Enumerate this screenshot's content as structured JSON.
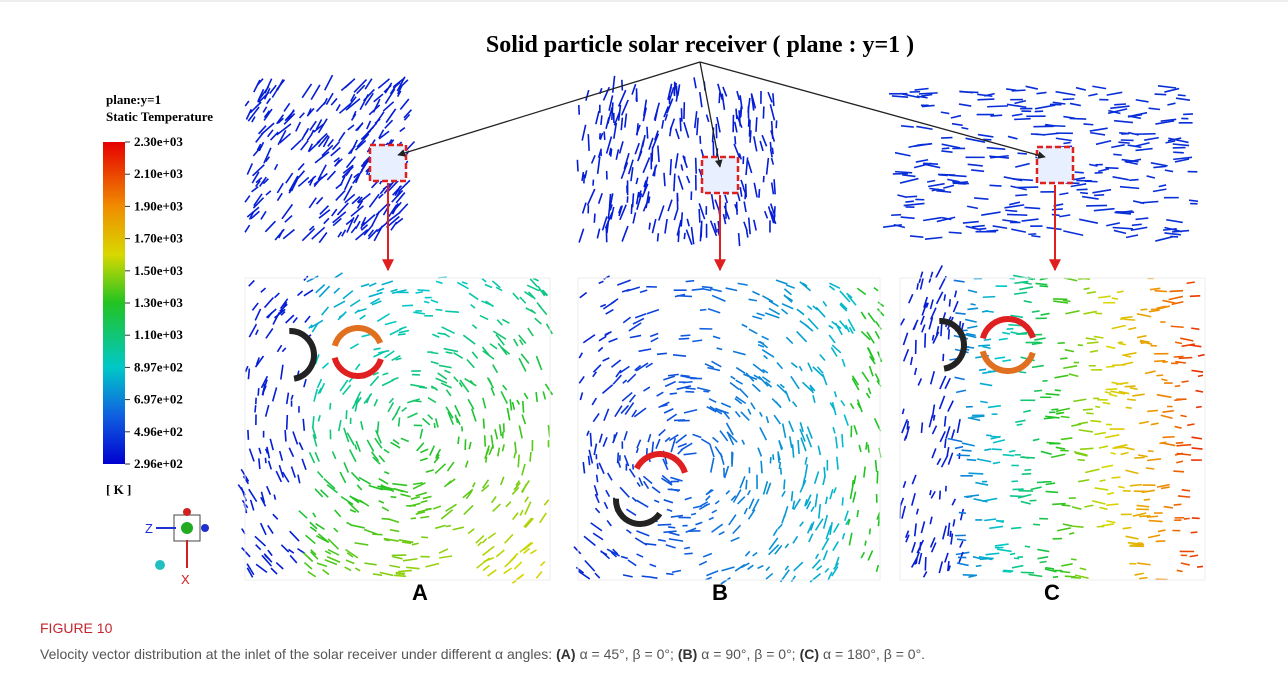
{
  "figure": {
    "title": "Solid particle solar receiver ( plane : y=1 )",
    "legend": {
      "plane": "plane:y=1",
      "quantity": "Static Temperature",
      "ticks": [
        "2.30e+03",
        "2.10e+03",
        "1.90e+03",
        "1.70e+03",
        "1.50e+03",
        "1.30e+03",
        "1.10e+03",
        "8.97e+02",
        "6.97e+02",
        "4.96e+02",
        "2.96e+02"
      ],
      "unit": "[ K ]"
    },
    "axes": {
      "z": "Z",
      "x": "X"
    },
    "panels": [
      "A",
      "B",
      "C"
    ]
  },
  "caption": {
    "label": "FIGURE 10",
    "intro": "Velocity vector distribution at the inlet of the solar receiver under different α angles:",
    "items": [
      {
        "label": "(A)",
        "text": "α = 45°, β = 0°;"
      },
      {
        "label": "(B)",
        "text": "α = 90°, β = 0°;"
      },
      {
        "label": "(C)",
        "text": "α = 180°, β = 0°."
      }
    ]
  }
}
